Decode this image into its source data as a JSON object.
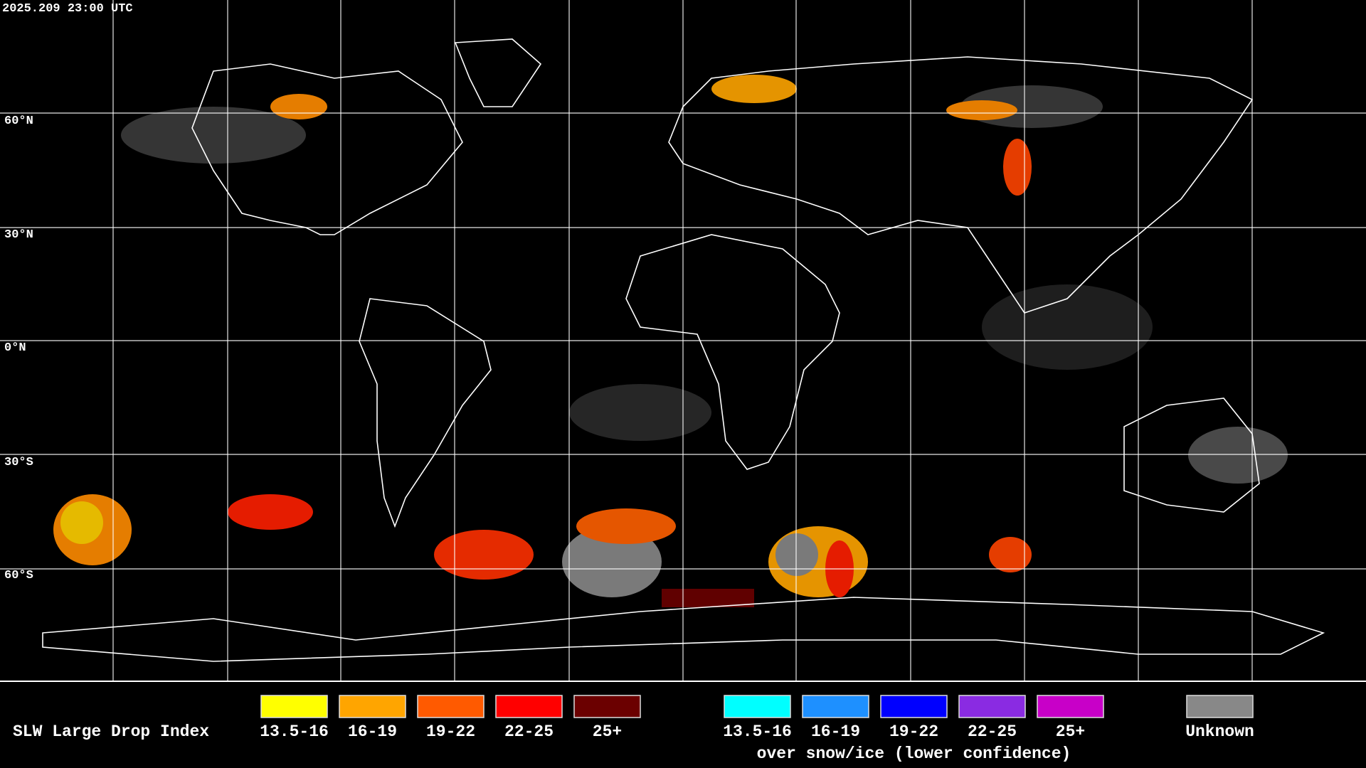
{
  "header": {
    "timestamp": "2025.209 23:00 UTC"
  },
  "map": {
    "latitude_labels": [
      "60°N",
      "30°N",
      "0°N",
      "30°S",
      "60°S"
    ]
  },
  "legend": {
    "title": "SLW Large Drop Index",
    "groups": [
      {
        "items": [
          {
            "label": "13.5-16",
            "color": "#ffff00"
          },
          {
            "label": "16-19",
            "color": "#ffa500"
          },
          {
            "label": "19-22",
            "color": "#ff5a00"
          },
          {
            "label": "22-25",
            "color": "#ff0000"
          },
          {
            "label": "25+",
            "color": "#6b0000"
          }
        ]
      },
      {
        "items": [
          {
            "label": "13.5-16",
            "color": "#00ffff"
          },
          {
            "label": "16-19",
            "color": "#1e90ff"
          },
          {
            "label": "19-22",
            "color": "#0000ff"
          },
          {
            "label": "22-25",
            "color": "#8a2be2"
          },
          {
            "label": "25+",
            "color": "#c800c8"
          }
        ],
        "caption": "over snow/ice (lower confidence)"
      }
    ],
    "unknown": {
      "label": "Unknown",
      "color": "#888888"
    }
  }
}
